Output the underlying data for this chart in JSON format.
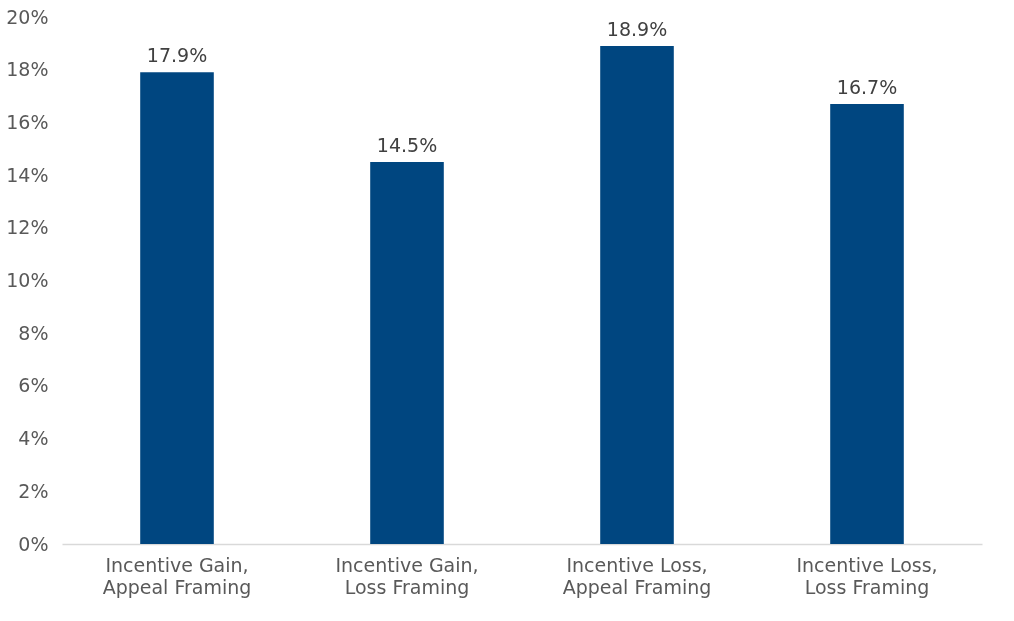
{
  "chart_data": {
    "type": "bar",
    "categories": [
      "Incentive Gain, Appeal Framing",
      "Incentive Gain, Loss Framing",
      "Incentive Loss, Appeal Framing",
      "Incentive Loss, Loss Framing"
    ],
    "values": [
      17.9,
      14.5,
      18.9,
      16.7
    ],
    "value_labels": [
      "17.9%",
      "14.5%",
      "18.9%",
      "16.7%"
    ],
    "color": "#004680",
    "ylim": [
      0,
      20
    ],
    "yticks": [
      {
        "value": 0,
        "label": "0%"
      },
      {
        "value": 2,
        "label": "2%"
      },
      {
        "value": 4,
        "label": "4%"
      },
      {
        "value": 6,
        "label": "6%"
      },
      {
        "value": 8,
        "label": "8%"
      },
      {
        "value": 10,
        "label": "10%"
      },
      {
        "value": 12,
        "label": "12%"
      },
      {
        "value": 14,
        "label": "14%"
      },
      {
        "value": 16,
        "label": "16%"
      },
      {
        "value": 18,
        "label": "18%"
      },
      {
        "value": 20,
        "label": "20%"
      }
    ],
    "grid": false
  }
}
